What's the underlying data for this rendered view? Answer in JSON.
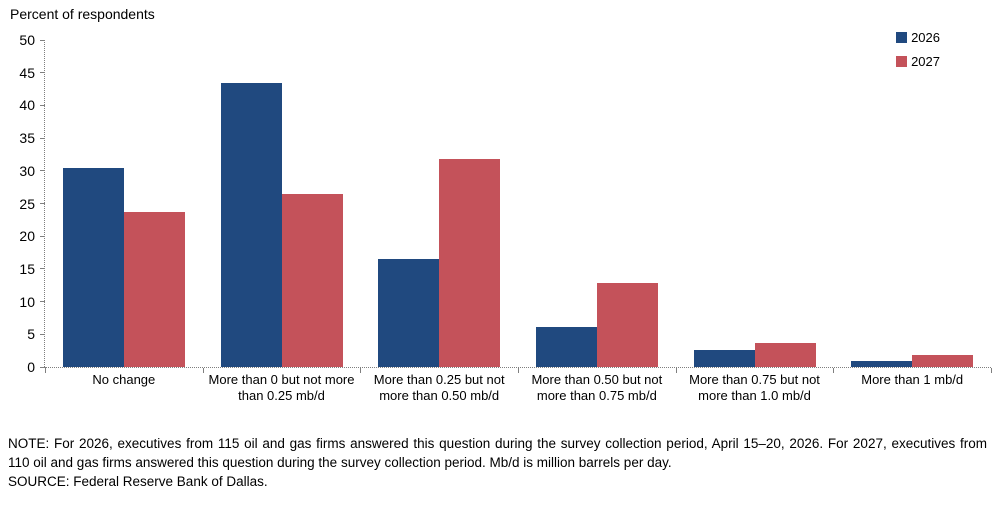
{
  "chart": {
    "title": "Percent of respondents"
  },
  "chart_data": {
    "type": "bar",
    "title": "Percent of respondents",
    "categories": [
      "No change",
      "More than 0 but not more than 0.25 mb/d",
      "More than 0.25 but not more than 0.50 mb/d",
      "More than 0.50 but not more than 0.75 mb/d",
      "More than 0.75 but not more than 1.0 mb/d",
      "More than 1 mb/d"
    ],
    "series": [
      {
        "name": "2026",
        "color": "#20497f",
        "values": [
          30.4,
          43.5,
          16.5,
          6.1,
          2.6,
          0.9
        ]
      },
      {
        "name": "2027",
        "color": "#c4525a",
        "values": [
          23.7,
          26.4,
          31.8,
          12.8,
          3.7,
          1.8
        ]
      }
    ],
    "xlabel": "",
    "ylabel": "Percent of respondents",
    "ylim": [
      0,
      50
    ],
    "y_ticks": [
      0,
      5,
      10,
      15,
      20,
      25,
      30,
      35,
      40,
      45,
      50
    ],
    "grid": false,
    "legend_position": "top-right"
  },
  "notes": {
    "note": "NOTE:  For 2026, executives  from 115 oil and gas firms answered  this question  during the survey collection  period, April 15–20, 2026. For 2027, executives  from 110 oil and gas firms answered  this question during the survey collection  period. Mb/d is million  barrels  per day.",
    "source": "SOURCE:  Federal Reserve  Bank of Dallas."
  }
}
